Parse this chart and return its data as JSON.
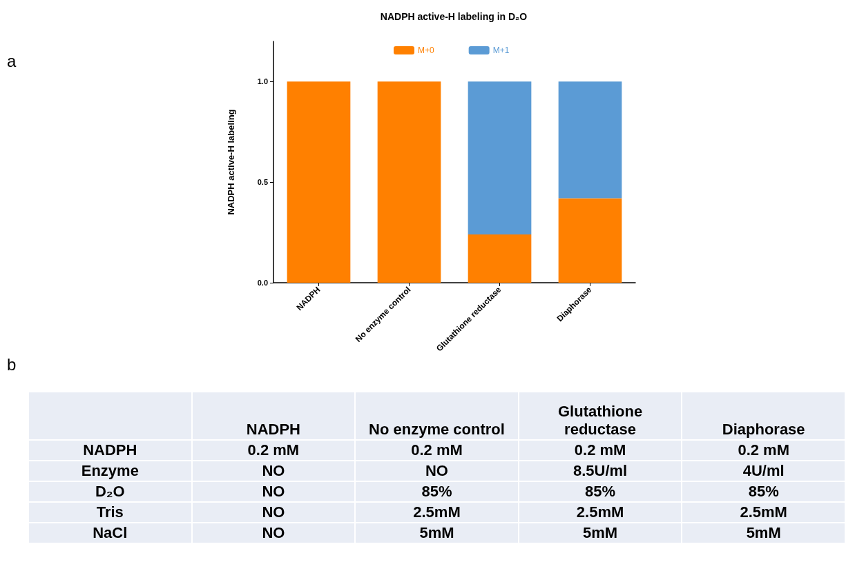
{
  "chart_data": [
    {
      "type": "bar",
      "title": "NADPH active-H labeling in D₂O",
      "ylabel": "NADPH active-H labeling",
      "annotations": [
        "a"
      ],
      "categories": [
        "NADPH",
        "No enzyme control",
        "Glutathione reductase",
        "Diaphorase"
      ],
      "series": [
        {
          "name": "M+0",
          "color": "#ff8000",
          "values": [
            1.0,
            1.0,
            0.24,
            0.42
          ]
        },
        {
          "name": "M+1",
          "color": "#5b9bd5",
          "values": [
            0,
            0,
            0.76,
            0.58
          ]
        }
      ],
      "stacked": true,
      "ylim": [
        0,
        1.2
      ],
      "yticks": [
        {
          "value": 0,
          "label": "0.0"
        },
        {
          "value": 0.5,
          "label": "0.5"
        },
        {
          "value": 1,
          "label": "1.0"
        }
      ],
      "grid": false,
      "legend": "top"
    },
    {
      "type": "other",
      "annotations": [
        "b"
      ],
      "categories": [
        "NADPH",
        "No enzyme control",
        "Glutathione reductase",
        "Diaphorase"
      ],
      "y_categories": [
        "NADPH",
        "Enzyme",
        "D₂O",
        "Tris",
        "NaCl"
      ],
      "cell_labels": [
        [
          "0.2 mM",
          "0.2 mM",
          "0.2 mM",
          "0.2 mM"
        ],
        [
          "NO",
          "NO",
          "8.5U/ml",
          "4U/ml"
        ],
        [
          "NO",
          "85%",
          "85%",
          "85%"
        ],
        [
          "NO",
          "2.5mM",
          "2.5mM",
          "2.5mM"
        ],
        [
          "NO",
          "5mM",
          "5mM",
          "5mM"
        ]
      ]
    }
  ]
}
